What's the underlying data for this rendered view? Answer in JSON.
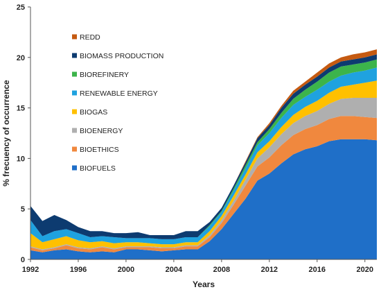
{
  "chart_data": {
    "type": "area",
    "stacked": true,
    "xlabel": "Years",
    "ylabel": "% frecuency of  occurrence",
    "xlim": [
      1992,
      2021
    ],
    "ylim": [
      0,
      25
    ],
    "x_ticks": [
      "1992",
      "1996",
      "2000",
      "2004",
      "2008",
      "2012",
      "2016",
      "2020"
    ],
    "y_ticks": [
      "0",
      "5",
      "10",
      "15",
      "20",
      "25"
    ],
    "grid": false,
    "legend_position": "upper-left",
    "x": [
      1992,
      1993,
      1994,
      1995,
      1996,
      1997,
      1998,
      1999,
      2000,
      2001,
      2002,
      2003,
      2004,
      2005,
      2006,
      2007,
      2008,
      2009,
      2010,
      2011,
      2012,
      2013,
      2014,
      2015,
      2016,
      2017,
      2018,
      2019,
      2020,
      2021
    ],
    "series": [
      {
        "name": "BIOFUELS",
        "color": "#1F6FC8",
        "values": [
          0.9,
          0.7,
          0.9,
          1.0,
          0.8,
          0.7,
          0.8,
          0.7,
          1.0,
          1.0,
          0.9,
          0.8,
          0.9,
          1.0,
          1.0,
          1.8,
          3.0,
          4.5,
          6.0,
          7.8,
          8.5,
          9.5,
          10.4,
          10.9,
          11.2,
          11.7,
          11.9,
          11.9,
          11.9,
          11.8
        ]
      },
      {
        "name": "BIOETHICS",
        "color": "#F0883E",
        "values": [
          0.3,
          0.2,
          0.2,
          0.4,
          0.3,
          0.3,
          0.4,
          0.3,
          0.2,
          0.2,
          0.3,
          0.3,
          0.2,
          0.3,
          0.3,
          0.4,
          0.6,
          0.9,
          1.3,
          1.4,
          1.6,
          1.8,
          1.9,
          2.0,
          2.1,
          2.2,
          2.3,
          2.3,
          2.2,
          2.2
        ]
      },
      {
        "name": "BIOENERGY",
        "color": "#AFAFAF",
        "values": [
          0.1,
          0.1,
          0.1,
          0.1,
          0.1,
          0.1,
          0.1,
          0.1,
          0.1,
          0.1,
          0.1,
          0.1,
          0.1,
          0.1,
          0.1,
          0.2,
          0.3,
          0.4,
          0.6,
          0.8,
          1.0,
          1.1,
          1.2,
          1.3,
          1.4,
          1.5,
          1.7,
          1.8,
          1.9,
          2.0
        ]
      },
      {
        "name": "BIOGAS",
        "color": "#FFC000",
        "values": [
          1.3,
          0.7,
          0.8,
          0.8,
          0.7,
          0.6,
          0.5,
          0.5,
          0.4,
          0.4,
          0.3,
          0.3,
          0.3,
          0.3,
          0.3,
          0.4,
          0.4,
          0.5,
          0.5,
          0.6,
          0.6,
          0.7,
          0.8,
          0.9,
          1.0,
          1.1,
          1.2,
          1.3,
          1.5,
          1.7
        ]
      },
      {
        "name": "RENEWABLE ENERGY",
        "color": "#1FA2DF",
        "values": [
          1.3,
          0.6,
          0.8,
          0.7,
          0.7,
          0.5,
          0.5,
          0.6,
          0.4,
          0.4,
          0.5,
          0.5,
          0.5,
          0.5,
          0.5,
          0.5,
          0.4,
          0.5,
          0.6,
          0.7,
          0.8,
          0.9,
          1.0,
          1.0,
          1.1,
          1.1,
          1.1,
          1.2,
          1.2,
          1.3
        ]
      },
      {
        "name": "BIOREFINERY",
        "color": "#3CB44B",
        "values": [
          0.0,
          0.0,
          0.0,
          0.0,
          0.0,
          0.0,
          0.0,
          0.0,
          0.0,
          0.0,
          0.0,
          0.0,
          0.0,
          0.0,
          0.0,
          0.1,
          0.1,
          0.2,
          0.3,
          0.3,
          0.4,
          0.5,
          0.6,
          0.7,
          0.8,
          0.9,
          0.9,
          0.8,
          0.8,
          0.8
        ]
      },
      {
        "name": "BIOMASS PRODUCTION",
        "color": "#0D3B70",
        "values": [
          1.4,
          1.5,
          1.6,
          0.9,
          0.6,
          0.6,
          0.5,
          0.4,
          0.5,
          0.6,
          0.3,
          0.4,
          0.4,
          0.6,
          0.6,
          0.3,
          0.3,
          0.3,
          0.3,
          0.4,
          0.4,
          0.5,
          0.5,
          0.5,
          0.5,
          0.5,
          0.5,
          0.5,
          0.5,
          0.5
        ]
      },
      {
        "name": "REDD",
        "color": "#C55A11",
        "values": [
          0.0,
          0.0,
          0.0,
          0.0,
          0.0,
          0.0,
          0.0,
          0.0,
          0.0,
          0.0,
          0.0,
          0.0,
          0.0,
          0.0,
          0.0,
          0.0,
          0.0,
          0.0,
          0.1,
          0.1,
          0.2,
          0.2,
          0.3,
          0.3,
          0.4,
          0.4,
          0.4,
          0.5,
          0.5,
          0.5
        ]
      }
    ],
    "legend_order": [
      "REDD",
      "BIOMASS PRODUCTION",
      "BIOREFINERY",
      "RENEWABLE ENERGY",
      "BIOGAS",
      "BIOENERGY",
      "BIOETHICS",
      "BIOFUELS"
    ]
  }
}
